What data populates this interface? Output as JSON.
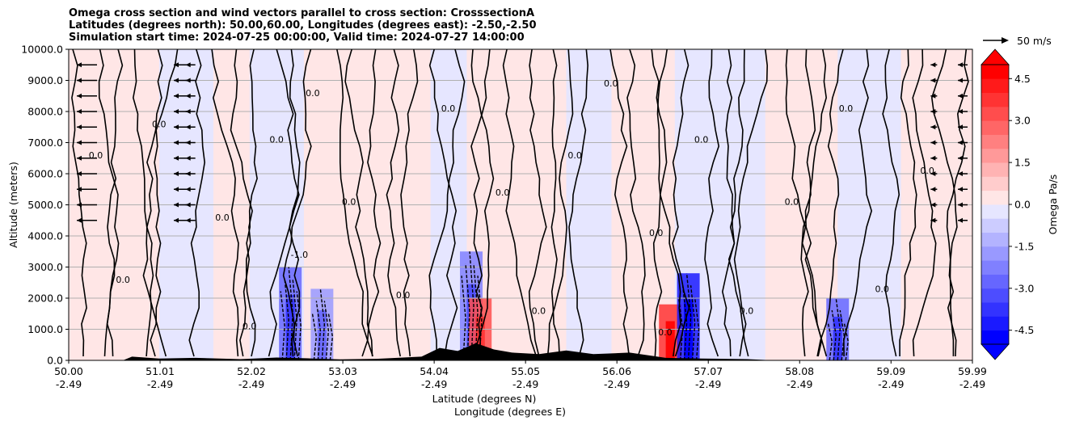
{
  "chart_data": {
    "type": "heatmap",
    "title_lines": [
      "Omega cross section and wind vectors parallel to cross section: CrosssectionA",
      "Latitudes (degrees north): 50.00,60.00, Longitudes (degrees east): -2.50,-2.50",
      "Simulation start time: 2024-07-25 00:00:00, Valid time: 2024-07-27 14:00:00"
    ],
    "ylabel": "Altitude (meters)",
    "xlabel_lat": "Latitude (degrees N)",
    "xlabel_lon": "Longitude (degrees E)",
    "ylim": [
      0,
      10000
    ],
    "yticks": [
      "0.0",
      "1000.0",
      "2000.0",
      "3000.0",
      "4000.0",
      "5000.0",
      "6000.0",
      "7000.0",
      "8000.0",
      "9000.0",
      "10000.0"
    ],
    "xticks_lat": [
      "50.00",
      "51.01",
      "52.02",
      "53.03",
      "54.04",
      "55.05",
      "56.06",
      "57.07",
      "58.08",
      "59.09",
      "59.99"
    ],
    "xticks_lon": [
      "-2.49",
      "-2.49",
      "-2.49",
      "-2.49",
      "-2.49",
      "-2.49",
      "-2.49",
      "-2.49",
      "-2.49",
      "-2.49",
      "-2.49"
    ],
    "xlim": [
      50.0,
      59.99
    ],
    "grid": "horizontal",
    "colorbar": {
      "label": "Omega Pa/s",
      "ticks": [
        "-4.5",
        "-3.0",
        "-1.5",
        "0.0",
        "1.5",
        "3.0",
        "4.5"
      ],
      "range": [
        -5.0,
        5.0
      ],
      "extend": "both",
      "colors": [
        "#0000ff",
        "#1a1aff",
        "#3333ff",
        "#4d4dff",
        "#6666ff",
        "#8080ff",
        "#9999ff",
        "#b3b3ff",
        "#ccccff",
        "#e6e6ff",
        "#ffe6e6",
        "#ffcccc",
        "#ffb3b3",
        "#ff9999",
        "#ff8080",
        "#ff6666",
        "#ff4d4d",
        "#ff3333",
        "#ff1a1a",
        "#ff0000"
      ]
    },
    "vector_key": {
      "label": "50 m/s"
    },
    "contour_labels": [
      "0.0",
      "-1.0"
    ],
    "bands": [
      {
        "from": 50.0,
        "to": 50.4,
        "omega": 0.2
      },
      {
        "from": 50.4,
        "to": 51.0,
        "omega": 0.3
      },
      {
        "from": 51.0,
        "to": 51.6,
        "omega": -0.2
      },
      {
        "from": 51.6,
        "to": 52.0,
        "omega": 0.2
      },
      {
        "from": 52.0,
        "to": 52.6,
        "omega": -0.3
      },
      {
        "from": 52.6,
        "to": 53.2,
        "omega": 0.1
      },
      {
        "from": 53.2,
        "to": 54.0,
        "omega": 0.3
      },
      {
        "from": 54.0,
        "to": 54.4,
        "omega": -0.3
      },
      {
        "from": 54.4,
        "to": 55.5,
        "omega": 0.3
      },
      {
        "from": 55.5,
        "to": 56.0,
        "omega": -0.2
      },
      {
        "from": 56.0,
        "to": 56.7,
        "omega": 0.3
      },
      {
        "from": 56.7,
        "to": 57.7,
        "omega": -0.2
      },
      {
        "from": 57.7,
        "to": 58.5,
        "omega": 0.2
      },
      {
        "from": 58.5,
        "to": 59.2,
        "omega": -0.3
      },
      {
        "from": 59.2,
        "to": 59.99,
        "omega": 0.2
      }
    ],
    "features": [
      {
        "lat": 52.45,
        "alt_top": 3000,
        "omega": -3.0
      },
      {
        "lat": 52.8,
        "alt_top": 2300,
        "omega": -2.0
      },
      {
        "lat": 54.45,
        "alt_top": 3500,
        "omega": -2.5
      },
      {
        "lat": 54.55,
        "alt_top": 2000,
        "omega": 3.0
      },
      {
        "lat": 56.65,
        "alt_top": 1800,
        "omega": 3.5
      },
      {
        "lat": 56.85,
        "alt_top": 2800,
        "omega": -4.5
      },
      {
        "lat": 58.5,
        "alt_top": 2000,
        "omega": -3.0
      }
    ],
    "terrain": [
      {
        "lat": 50.0,
        "alt": 0
      },
      {
        "lat": 50.6,
        "alt": 0
      },
      {
        "lat": 50.7,
        "alt": 120
      },
      {
        "lat": 51.0,
        "alt": 60
      },
      {
        "lat": 51.4,
        "alt": 80
      },
      {
        "lat": 51.9,
        "alt": 40
      },
      {
        "lat": 52.3,
        "alt": 90
      },
      {
        "lat": 52.7,
        "alt": 60
      },
      {
        "lat": 53.0,
        "alt": 30
      },
      {
        "lat": 53.4,
        "alt": 50
      },
      {
        "lat": 53.9,
        "alt": 120
      },
      {
        "lat": 54.1,
        "alt": 400
      },
      {
        "lat": 54.3,
        "alt": 300
      },
      {
        "lat": 54.5,
        "alt": 550
      },
      {
        "lat": 54.7,
        "alt": 350
      },
      {
        "lat": 54.9,
        "alt": 250
      },
      {
        "lat": 55.2,
        "alt": 200
      },
      {
        "lat": 55.5,
        "alt": 320
      },
      {
        "lat": 55.8,
        "alt": 200
      },
      {
        "lat": 56.2,
        "alt": 250
      },
      {
        "lat": 56.6,
        "alt": 80
      },
      {
        "lat": 57.0,
        "alt": 60
      },
      {
        "lat": 57.5,
        "alt": 40
      },
      {
        "lat": 57.8,
        "alt": 0
      },
      {
        "lat": 59.99,
        "alt": 0
      }
    ]
  }
}
